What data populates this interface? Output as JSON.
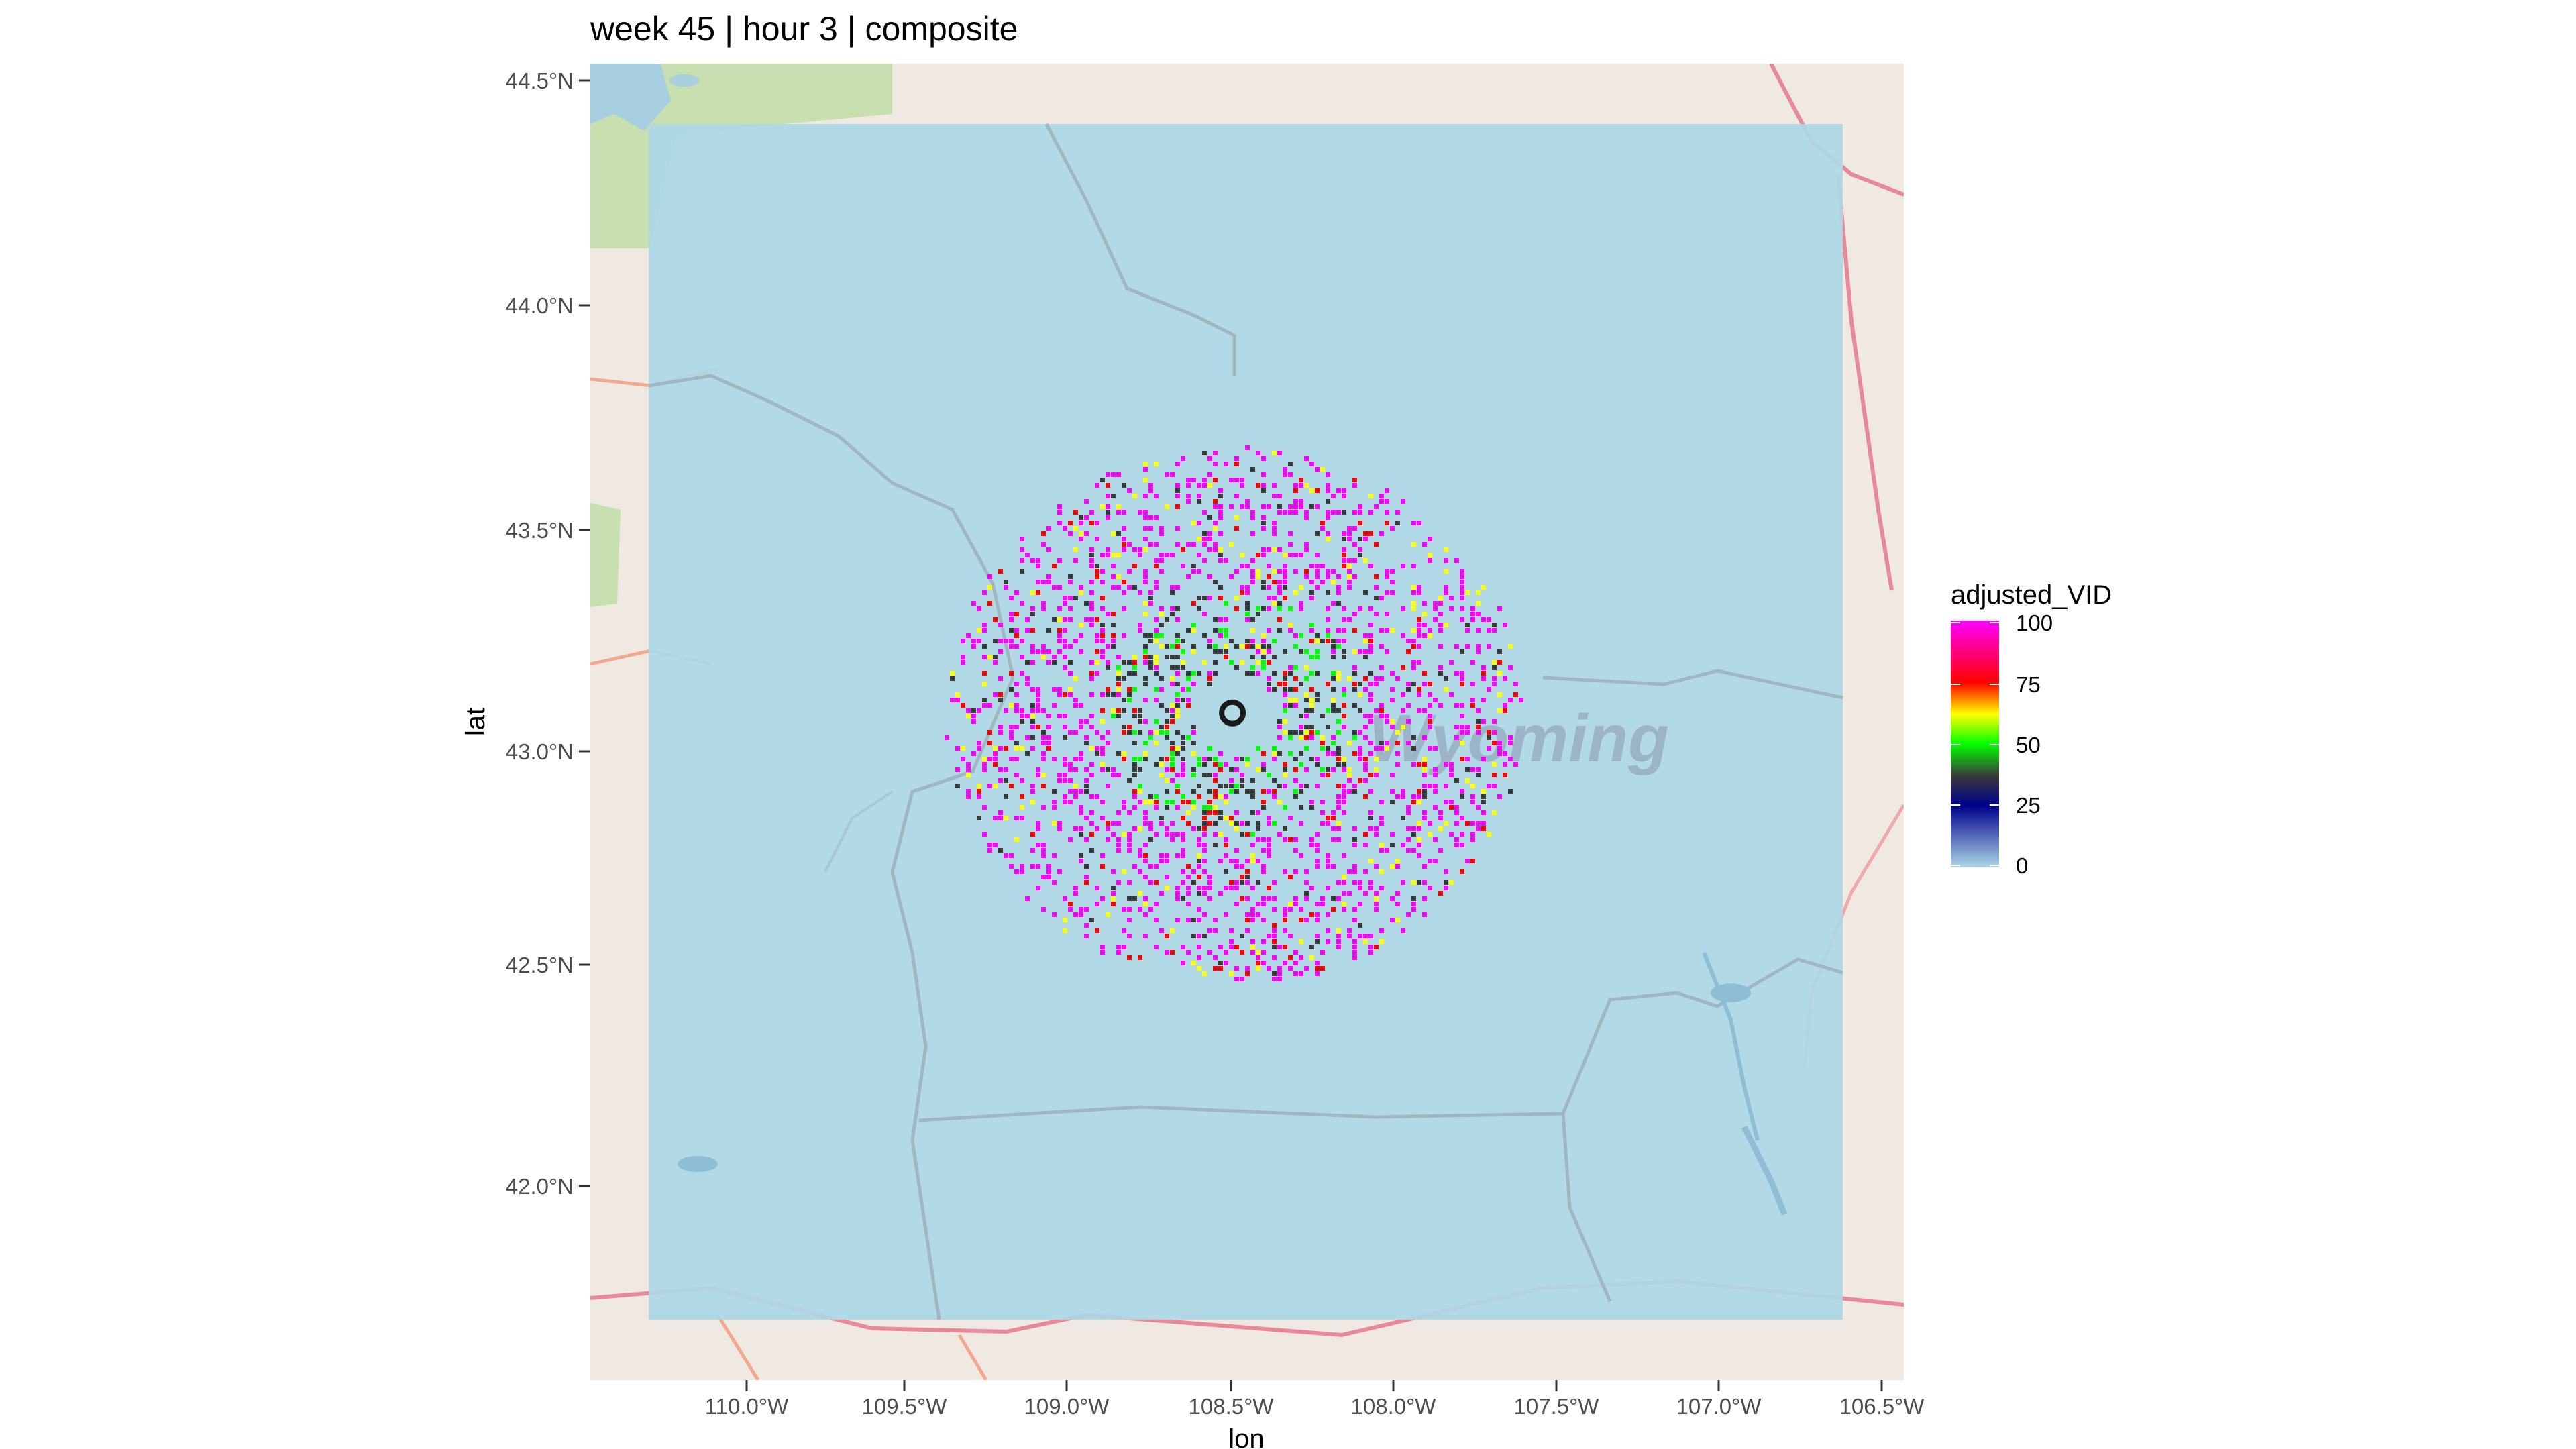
{
  "title": "week 45 | hour 3 | composite",
  "map": {
    "place_label": "Wyoming",
    "radar_site": {
      "lon": -108.48,
      "lat": 43.07
    }
  },
  "chart_data": {
    "type": "heatmap",
    "title": "week 45 | hour 3 | composite",
    "xlabel": "lon",
    "ylabel": "lat",
    "xlim": [
      -110.45,
      -106.42
    ],
    "ylim": [
      41.57,
      44.53
    ],
    "x_ticks": [
      -110.0,
      -109.5,
      -109.0,
      -108.5,
      -108.0,
      -107.5,
      -107.0,
      -106.5
    ],
    "x_tick_labels": [
      "110.0°W",
      "109.5°W",
      "109.0°W",
      "108.5°W",
      "108.0°W",
      "107.5°W",
      "107.0°W",
      "106.5°W"
    ],
    "y_ticks": [
      42.0,
      42.5,
      43.0,
      43.5,
      44.0,
      44.5
    ],
    "y_tick_labels": [
      "42.0°N",
      "42.5°N",
      "43.0°N",
      "43.5°N",
      "44.0°N",
      "44.5°N"
    ],
    "raster_extent": {
      "lon": [
        -110.27,
        -106.66
      ],
      "lat": [
        41.72,
        44.4
      ]
    },
    "fill_scale": {
      "name": "adjusted_VID",
      "limits": [
        0,
        100
      ],
      "breaks": [
        0,
        25,
        50,
        75,
        100
      ],
      "break_labels": [
        "0",
        "25",
        "50",
        "75",
        "100"
      ],
      "colors": [
        {
          "value": 0,
          "color": "#add8e6"
        },
        {
          "value": 25,
          "color": "#00008b"
        },
        {
          "value": 37,
          "color": "#3a3a3a"
        },
        {
          "value": 50,
          "color": "#00ff00"
        },
        {
          "value": 62,
          "color": "#ffff00"
        },
        {
          "value": 75,
          "color": "#ff0000"
        },
        {
          "value": 100,
          "color": "#ff00ff"
        }
      ]
    },
    "grid": false,
    "legend_position": "right"
  },
  "colors": {
    "basemap_land": "#efe9e1",
    "basemap_park": "#c8dfb0",
    "basemap_water": "#a8cfe0",
    "roads": "#e8899b",
    "zero_fill": "#add8e6"
  }
}
